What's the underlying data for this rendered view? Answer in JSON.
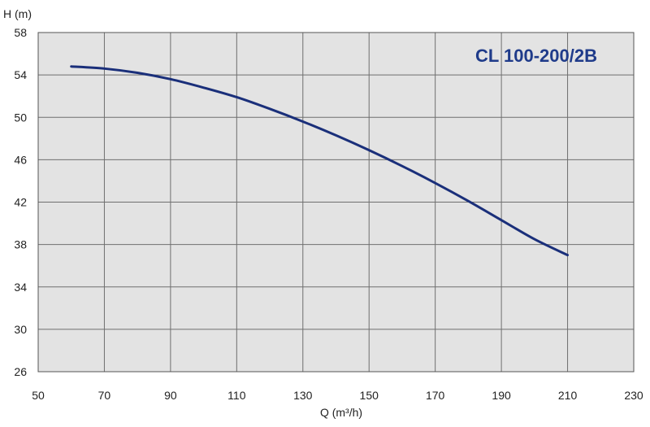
{
  "chart_data": {
    "type": "line",
    "title": "CL 100-200/2B",
    "xlabel": "Q (m³/h)",
    "ylabel": "H (m)",
    "xlim": [
      50,
      230
    ],
    "ylim": [
      26,
      58
    ],
    "xticks": [
      50,
      70,
      90,
      110,
      130,
      150,
      170,
      190,
      210,
      230
    ],
    "yticks": [
      26,
      30,
      34,
      38,
      42,
      46,
      50,
      54,
      58
    ],
    "grid": true,
    "legend": "none",
    "colors": {
      "line": "#1a2f7a",
      "plot_bg": "#e3e3e3",
      "grid": "#6f6f6f",
      "title": "#1f3b8a"
    },
    "series": [
      {
        "x": [
          60,
          70,
          80,
          90,
          100,
          110,
          120,
          130,
          140,
          150,
          160,
          170,
          180,
          190,
          200,
          210
        ],
        "y": [
          54.8,
          54.6,
          54.2,
          53.6,
          52.8,
          51.9,
          50.8,
          49.6,
          48.3,
          46.9,
          45.4,
          43.8,
          42.1,
          40.3,
          38.5,
          37.0
        ]
      }
    ]
  }
}
